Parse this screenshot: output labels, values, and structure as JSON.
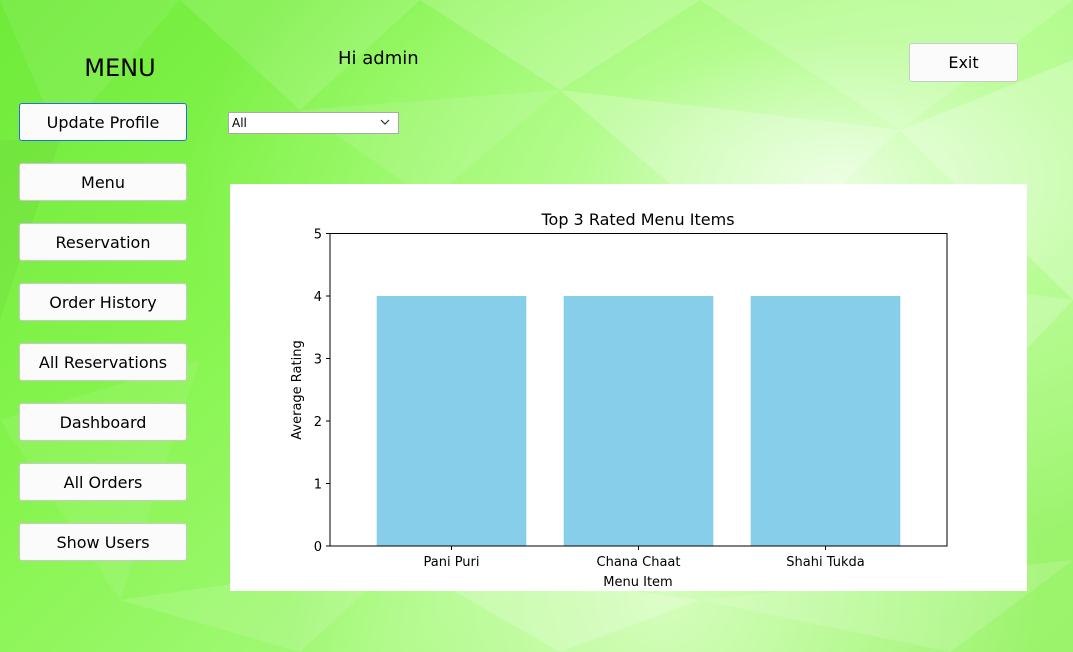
{
  "sidebar": {
    "title": "MENU",
    "items": [
      {
        "label": "Update Profile",
        "name": "update-profile-button"
      },
      {
        "label": "Menu",
        "name": "menu-button"
      },
      {
        "label": "Reservation",
        "name": "reservation-button"
      },
      {
        "label": "Order History",
        "name": "order-history-button"
      },
      {
        "label": "All Reservations",
        "name": "all-reservations-button"
      },
      {
        "label": "Dashboard",
        "name": "dashboard-button"
      },
      {
        "label": "All Orders",
        "name": "all-orders-button"
      },
      {
        "label": "Show Users",
        "name": "show-users-button"
      }
    ]
  },
  "header": {
    "greeting": "Hi admin",
    "exit_label": "Exit"
  },
  "filter": {
    "selected": "All"
  },
  "colors": {
    "bar": "#87ceeb",
    "focus_border": "#1e74d0"
  },
  "chart_data": {
    "type": "bar",
    "title": "Top 3 Rated Menu Items",
    "xlabel": "Menu Item",
    "ylabel": "Average Rating",
    "categories": [
      "Pani Puri",
      "Chana Chaat",
      "Shahi Tukda"
    ],
    "values": [
      4,
      4,
      4
    ],
    "ylim": [
      0,
      5
    ],
    "yticks": [
      0,
      1,
      2,
      3,
      4,
      5
    ],
    "grid": false,
    "legend": "none"
  }
}
